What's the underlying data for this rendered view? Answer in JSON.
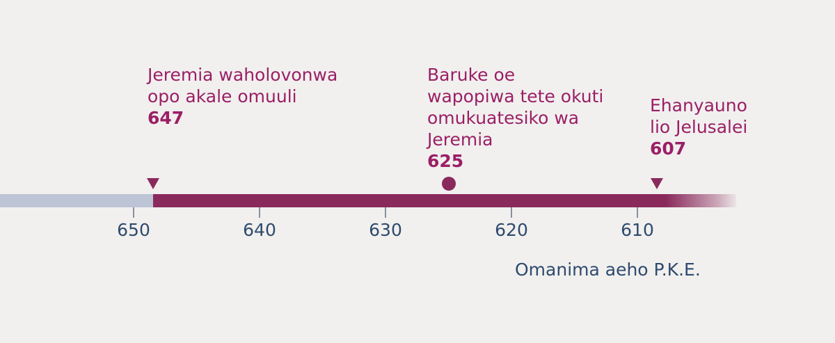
{
  "timeline": {
    "ticks": [
      {
        "label": "650"
      },
      {
        "label": "640"
      },
      {
        "label": "630"
      },
      {
        "label": "620"
      },
      {
        "label": "610"
      }
    ],
    "caption": "Omanima aeho P.K.E."
  },
  "events": [
    {
      "desc_lines": [
        "Jeremia waholovonwa",
        "opo akale omuuli"
      ],
      "year": "647",
      "marker": "triangle"
    },
    {
      "desc_lines": [
        "Baruke oe",
        "wapopiwa tete okuti",
        "omukuatesiko wa",
        "Jeremia"
      ],
      "year": "625",
      "marker": "dot"
    },
    {
      "desc_lines": [
        "Ehanyauno",
        "lio Jelusalei"
      ],
      "year": "607",
      "marker": "triangle"
    }
  ],
  "colors": {
    "accent": "#8a2a5c",
    "event_text": "#9b1f66",
    "axis_text": "#2e4a6e",
    "past_bar": "#bcc4d6"
  }
}
